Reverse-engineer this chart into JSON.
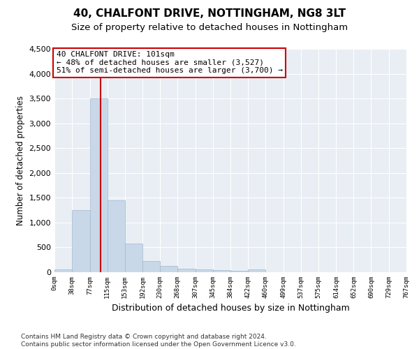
{
  "title1": "40, CHALFONT DRIVE, NOTTINGHAM, NG8 3LT",
  "title2": "Size of property relative to detached houses in Nottingham",
  "xlabel": "Distribution of detached houses by size in Nottingham",
  "ylabel": "Number of detached properties",
  "bar_color": "#c8d8e8",
  "bar_edge_color": "#a0b8d0",
  "background_color": "#e8eef4",
  "annotation_text": "40 CHALFONT DRIVE: 101sqm\n← 48% of detached houses are smaller (3,527)\n51% of semi-detached houses are larger (3,700) →",
  "vline_x": 101,
  "vline_color": "#cc0000",
  "bin_edges": [
    0,
    38,
    77,
    115,
    153,
    192,
    230,
    268,
    307,
    345,
    384,
    422,
    460,
    499,
    537,
    575,
    614,
    652,
    690,
    729,
    767
  ],
  "bar_values": [
    55,
    1250,
    3500,
    1450,
    575,
    225,
    120,
    75,
    50,
    40,
    25,
    50,
    5,
    0,
    0,
    0,
    0,
    0,
    0,
    0
  ],
  "ylim": [
    0,
    4500
  ],
  "yticks": [
    0,
    500,
    1000,
    1500,
    2000,
    2500,
    3000,
    3500,
    4000,
    4500
  ],
  "footer_text": "Contains HM Land Registry data © Crown copyright and database right 2024.\nContains public sector information licensed under the Open Government Licence v3.0.",
  "title1_fontsize": 11,
  "title2_fontsize": 9.5,
  "annotation_box_color": "#ffffff",
  "annotation_box_edge_color": "#cc0000"
}
